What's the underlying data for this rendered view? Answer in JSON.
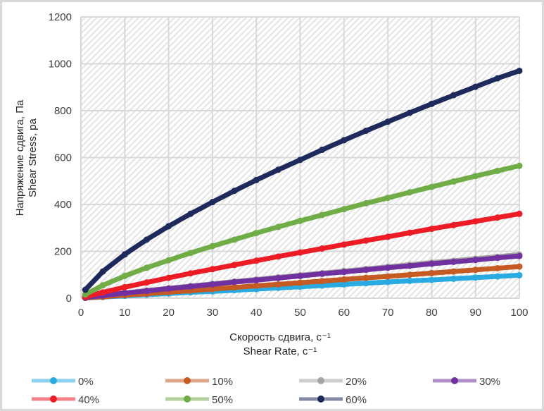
{
  "chart_data": {
    "type": "line",
    "title": "",
    "xlabel": [
      "Скорость сдвига, с⁻¹",
      "Shear Rate, с⁻¹"
    ],
    "ylabel": [
      "Напряжение сдвига, Па",
      "Shear Stress, pa"
    ],
    "xlim": [
      0,
      100
    ],
    "ylim": [
      0,
      1200
    ],
    "xticks": [
      0,
      10,
      20,
      30,
      40,
      50,
      60,
      70,
      80,
      90,
      100
    ],
    "yticks": [
      0,
      200,
      400,
      600,
      800,
      1000,
      1200
    ],
    "grid": true,
    "legend_placement": "bottom",
    "x": [
      1,
      5,
      10,
      15,
      20,
      25,
      30,
      35,
      40,
      45,
      50,
      55,
      60,
      65,
      70,
      75,
      80,
      85,
      90,
      95,
      100
    ],
    "series": [
      {
        "name": "0%",
        "color": "#29abe2",
        "values": [
          1,
          5,
          10,
          15,
          20,
          25,
          29,
          34,
          39,
          44,
          49,
          54,
          59,
          64,
          69,
          74,
          78,
          83,
          88,
          93,
          98
        ]
      },
      {
        "name": "10%",
        "color": "#c55a22",
        "values": [
          1,
          6,
          13,
          19,
          26,
          32,
          39,
          46,
          53,
          59,
          66,
          73,
          80,
          87,
          93,
          100,
          107,
          114,
          121,
          128,
          135
        ]
      },
      {
        "name": "20%",
        "color": "#a5a5a5",
        "values": [
          3,
          12,
          22,
          33,
          42,
          52,
          61,
          71,
          80,
          89,
          98,
          107,
          116,
          125,
          134,
          143,
          152,
          160,
          169,
          177,
          186
        ]
      },
      {
        "name": "30%",
        "color": "#7030a0",
        "values": [
          3,
          11,
          22,
          31,
          41,
          50,
          59,
          69,
          77,
          86,
          95,
          104,
          112,
          121,
          130,
          138,
          147,
          155,
          163,
          172,
          180
        ]
      },
      {
        "name": "40%",
        "color": "#ed1c24",
        "values": [
          6,
          25,
          47,
          67,
          87,
          106,
          124,
          142,
          160,
          178,
          195,
          212,
          229,
          246,
          262,
          279,
          296,
          312,
          328,
          344,
          360
        ]
      },
      {
        "name": "50%",
        "color": "#70ad47",
        "values": [
          16,
          55,
          95,
          130,
          162,
          193,
          222,
          250,
          278,
          304,
          330,
          355,
          380,
          405,
          428,
          452,
          475,
          498,
          521,
          543,
          565
        ]
      },
      {
        "name": "60%",
        "color": "#1f2a5c",
        "values": [
          36,
          114,
          187,
          250,
          307,
          360,
          410,
          458,
          504,
          548,
          590,
          633,
          674,
          714,
          753,
          791,
          829,
          866,
          902,
          938,
          970
        ]
      }
    ]
  }
}
